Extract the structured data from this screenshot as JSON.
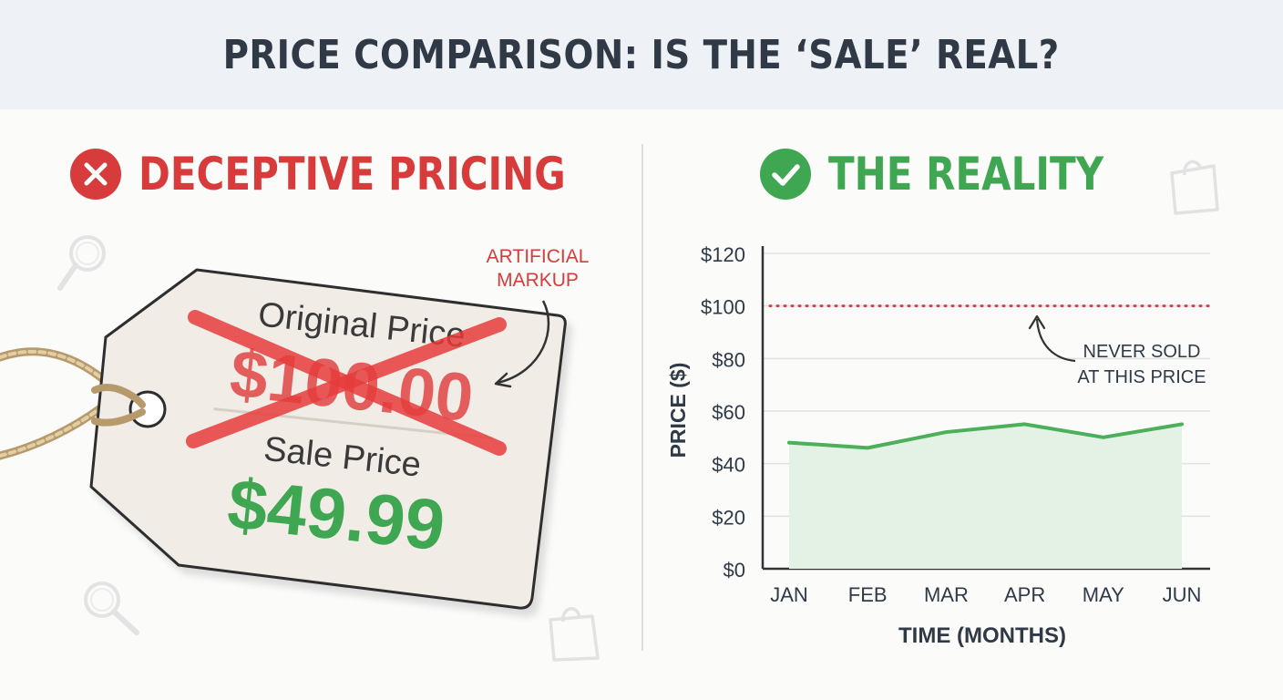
{
  "header": {
    "title": "PRICE COMPARISON: IS THE ‘SALE’ REAL?"
  },
  "left_panel": {
    "title": "DECEPTIVE PRICING",
    "status_icon": "x-circle-icon",
    "status_color": "#d83b3b",
    "annotation": [
      "ARTIFICIAL",
      "MARKUP"
    ],
    "tag": {
      "original_label": "Original Price",
      "original_price": "$100.00",
      "sale_label": "Sale Price",
      "sale_price": "$49.99"
    }
  },
  "right_panel": {
    "title": "THE REALITY",
    "status_icon": "check-circle-icon",
    "status_color": "#3fa652"
  },
  "chart_data": {
    "type": "area",
    "categories": [
      "JAN",
      "FEB",
      "MAR",
      "APR",
      "MAY",
      "JUN"
    ],
    "series": [
      {
        "values": [
          48,
          46,
          52,
          55,
          50,
          55
        ],
        "color": "#4caf5a"
      }
    ],
    "reference_line": {
      "value": 100,
      "style": "dotted",
      "color": "#d84040"
    },
    "annotation": [
      "NEVER SOLD",
      "AT THIS PRICE"
    ],
    "xlabel": "TIME (MONTHS)",
    "ylabel": "PRICE ($)",
    "ylim": [
      0,
      120
    ],
    "yticks": [
      "$0",
      "$20",
      "$40",
      "$60",
      "$80",
      "$100",
      "$120"
    ],
    "ytick_values": [
      0,
      20,
      40,
      60,
      80,
      100,
      120
    ],
    "grid": true
  }
}
